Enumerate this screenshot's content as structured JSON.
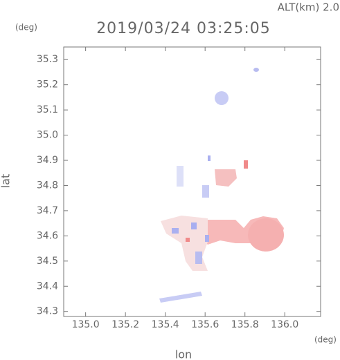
{
  "chart_data": {
    "type": "map",
    "title": "2019/03/24 03:25:05",
    "subtitle": "ALT(km) 2.0",
    "x_label": "lon",
    "y_label": "lat",
    "x_unit": "(deg)",
    "y_unit": "(deg)",
    "xlim": [
      134.89,
      136.18
    ],
    "ylim": [
      34.28,
      35.35
    ],
    "xticks": [
      {
        "value": 135,
        "label": "135.0"
      },
      135.2,
      135.4,
      135.6,
      135.8,
      {
        "value": 136,
        "label": "136.0"
      }
    ],
    "yticks": [
      34.3,
      34.4,
      34.5,
      34.6,
      34.7,
      34.8,
      34.9,
      {
        "value": 35,
        "label": "35.0"
      },
      35.1,
      35.2,
      35.3
    ]
  }
}
